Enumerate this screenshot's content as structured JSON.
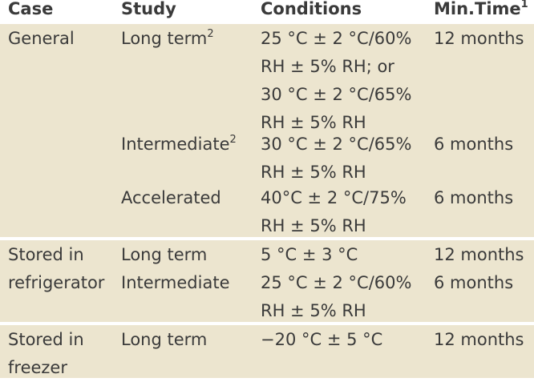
{
  "header": {
    "case": "Case",
    "study": "Study",
    "conditions": "Conditions",
    "min_time": "Min.Time",
    "min_time_sup": "1"
  },
  "groups": [
    {
      "case": [
        "General"
      ],
      "rows": [
        {
          "study": "Long term",
          "study_sup": "2",
          "conditions": [
            "25 °C ± 2 °C/60%",
            "RH ± 5% RH; or",
            "30 °C ± 2 °C/65%",
            "RH ± 5% RH"
          ],
          "min_time": "12 months"
        },
        {
          "study": "Intermediate",
          "study_sup": "2",
          "conditions": [
            "30 °C ± 2 °C/65%",
            "RH ± 5% RH"
          ],
          "min_time": "6 months"
        },
        {
          "study": "Accelerated",
          "conditions": [
            "40°C ± 2 °C/75%",
            "RH ± 5% RH"
          ],
          "min_time": "6 months"
        }
      ]
    },
    {
      "case": [
        "Stored in",
        "refrigerator"
      ],
      "rows": [
        {
          "study": "Long term",
          "conditions": [
            "5 °C ± 3 °C"
          ],
          "min_time": "12 months"
        },
        {
          "study": "Intermediate",
          "conditions": [
            "25 °C ± 2 °C/60%",
            "RH ± 5% RH"
          ],
          "min_time": "6 months"
        }
      ]
    },
    {
      "case": [
        "Stored in",
        "freezer"
      ],
      "rows": [
        {
          "study": "Long term",
          "conditions": [
            "−20 °C ± 5 °C"
          ],
          "min_time": "12 months"
        }
      ]
    }
  ],
  "colors": {
    "band": "#ece5cf",
    "text": "#3a3a3a",
    "divider": "#ffffff"
  }
}
